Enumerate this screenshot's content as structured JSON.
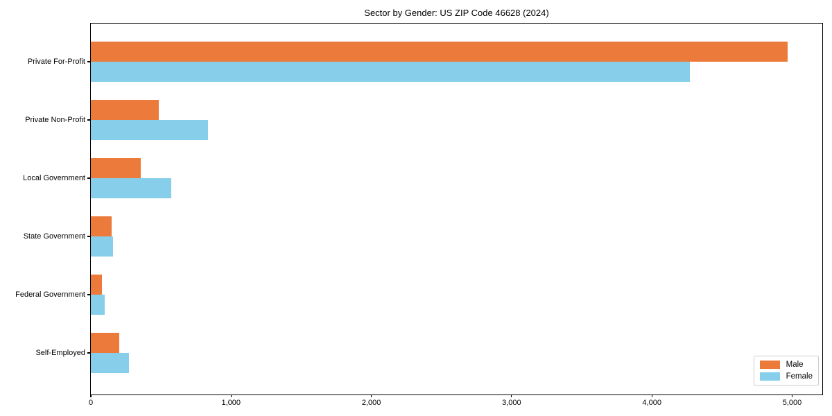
{
  "chart_data": {
    "type": "bar",
    "orientation": "horizontal",
    "title": "Sector by Gender: US ZIP Code 46628 (2024)",
    "categories": [
      "Private For-Profit",
      "Private Non-Profit",
      "Local Government",
      "State Government",
      "Federal Government",
      "Self-Employed"
    ],
    "series": [
      {
        "name": "Male",
        "color": "#ec7a3b",
        "values": [
          4970,
          485,
          355,
          150,
          80,
          205
        ]
      },
      {
        "name": "Female",
        "color": "#87ceeb",
        "values": [
          4270,
          835,
          575,
          160,
          100,
          270
        ]
      }
    ],
    "xlabel": "",
    "ylabel": "",
    "xlim": [
      0,
      5225
    ],
    "xticks": [
      0,
      1000,
      2000,
      3000,
      4000,
      5000
    ],
    "xtick_labels": [
      "0",
      "1,000",
      "2,000",
      "3,000",
      "4,000",
      "5,000"
    ],
    "grid": false,
    "legend_position": "lower right",
    "frame": "full-box"
  }
}
